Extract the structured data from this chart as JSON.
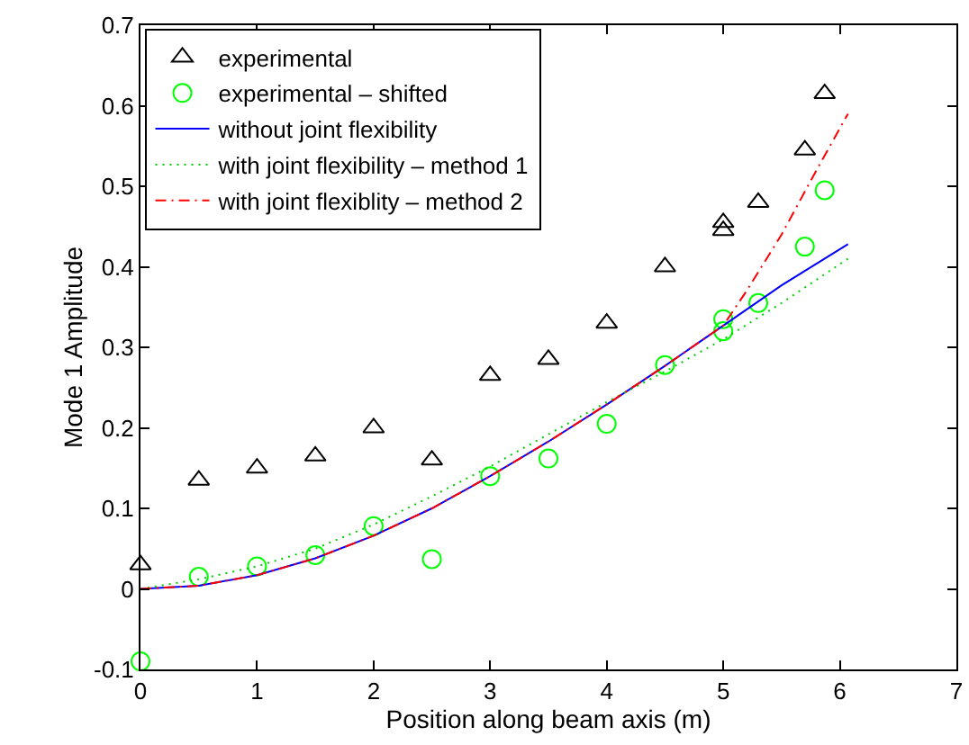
{
  "chart_data": {
    "type": "line",
    "xlabel": "Position along beam axis (m)",
    "ylabel": "Mode 1 Amplitude",
    "xlim": [
      0,
      7
    ],
    "xticks": [
      0,
      1,
      2,
      3,
      4,
      5,
      6,
      7
    ],
    "ylim": [
      -0.1,
      0.7
    ],
    "yticks": [
      -0.1,
      0,
      0.1,
      0.2,
      0.3,
      0.4,
      0.5,
      0.6,
      0.7
    ],
    "grid": false,
    "legend": "top left",
    "series": [
      {
        "name": "experimental",
        "type": "scatter",
        "marker": "triangle",
        "color": "#000000",
        "x": [
          0,
          0.5,
          1,
          1.5,
          2,
          2.5,
          3,
          3.5,
          4,
          4.5,
          5,
          5,
          5.3,
          5.7,
          5.87
        ],
        "values": [
          0.03,
          0.135,
          0.15,
          0.165,
          0.2,
          0.16,
          0.265,
          0.285,
          0.33,
          0.4,
          0.455,
          0.445,
          0.48,
          0.545,
          0.615
        ]
      },
      {
        "name": "experimental – shifted",
        "type": "scatter",
        "marker": "circle",
        "color": "#00ff00",
        "x": [
          0,
          0.5,
          1,
          1.5,
          2,
          2.5,
          3,
          3.5,
          4,
          4.5,
          5,
          5,
          5.3,
          5.7,
          5.87
        ],
        "values": [
          -0.09,
          0.015,
          0.028,
          0.042,
          0.078,
          0.037,
          0.14,
          0.162,
          0.205,
          0.278,
          0.335,
          0.32,
          0.355,
          0.425,
          0.495
        ]
      },
      {
        "name": "without joint flexibility",
        "line_style": "solid",
        "color": "#0000ff",
        "x": [
          0,
          0.5,
          1,
          1.5,
          2,
          2.5,
          3,
          3.5,
          4,
          4.5,
          5,
          5.5,
          6.07
        ],
        "values": [
          0,
          0.004,
          0.017,
          0.038,
          0.066,
          0.1,
          0.14,
          0.183,
          0.229,
          0.277,
          0.327,
          0.377,
          0.428
        ]
      },
      {
        "name": "with joint flexibility – method 1",
        "line_style": "dotted",
        "color": "#00cc00",
        "x": [
          0,
          0.5,
          1,
          1.5,
          2,
          2.5,
          3,
          3.5,
          4,
          4.5,
          5,
          5.5,
          6.07
        ],
        "values": [
          0,
          0.012,
          0.028,
          0.05,
          0.08,
          0.115,
          0.152,
          0.192,
          0.232,
          0.27,
          0.31,
          0.355,
          0.41
        ]
      },
      {
        "name": "with joint flexiblity – method 2",
        "line_style": "dashdot",
        "color": "#ff0000",
        "x": [
          0,
          0.5,
          1,
          1.5,
          2,
          2.5,
          3,
          3.5,
          4,
          4.5,
          5,
          5.2,
          5.5,
          5.8,
          6.07
        ],
        "values": [
          0,
          0.004,
          0.017,
          0.038,
          0.066,
          0.1,
          0.14,
          0.183,
          0.229,
          0.277,
          0.327,
          0.37,
          0.44,
          0.52,
          0.59
        ]
      }
    ]
  }
}
